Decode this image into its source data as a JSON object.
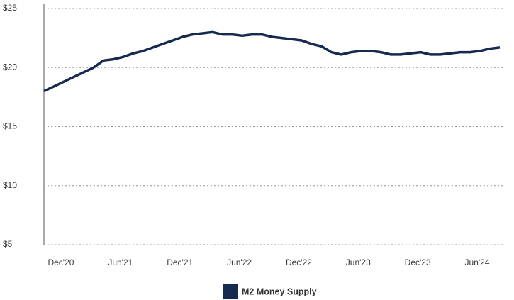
{
  "chart_data": {
    "type": "line",
    "categories": [
      null,
      null,
      "Dec'20",
      null,
      null,
      null,
      null,
      null,
      "Jun'21",
      null,
      null,
      null,
      null,
      null,
      "Dec'21",
      null,
      null,
      null,
      null,
      null,
      "Jun'22",
      null,
      null,
      null,
      null,
      null,
      "Dec'22",
      null,
      null,
      null,
      null,
      null,
      "Jun'23",
      null,
      null,
      null,
      null,
      null,
      "Dec'23",
      null,
      null,
      null,
      null,
      null,
      "Jun'24",
      null,
      null
    ],
    "series": [
      {
        "name": "M2 Money Supply",
        "color": "#16294f",
        "values": [
          18.0,
          18.4,
          18.8,
          19.2,
          19.6,
          20.0,
          20.6,
          20.7,
          20.9,
          21.2,
          21.4,
          21.7,
          22.0,
          22.3,
          22.6,
          22.8,
          22.9,
          23.0,
          22.8,
          22.8,
          22.7,
          22.8,
          22.8,
          22.6,
          22.5,
          22.4,
          22.3,
          22.0,
          21.8,
          21.3,
          21.1,
          21.3,
          21.4,
          21.4,
          21.3,
          21.1,
          21.1,
          21.2,
          21.3,
          21.1,
          21.1,
          21.2,
          21.3,
          21.3,
          21.4,
          21.6,
          21.7
        ]
      }
    ],
    "ylim": [
      5,
      25
    ],
    "yticks": [
      {
        "value": 5,
        "label": "$5"
      },
      {
        "value": 10,
        "label": "$10"
      },
      {
        "value": 15,
        "label": "$15"
      },
      {
        "value": 20,
        "label": "$20"
      },
      {
        "value": 25,
        "label": "$25"
      }
    ],
    "grid": true,
    "legend": "bottom"
  }
}
